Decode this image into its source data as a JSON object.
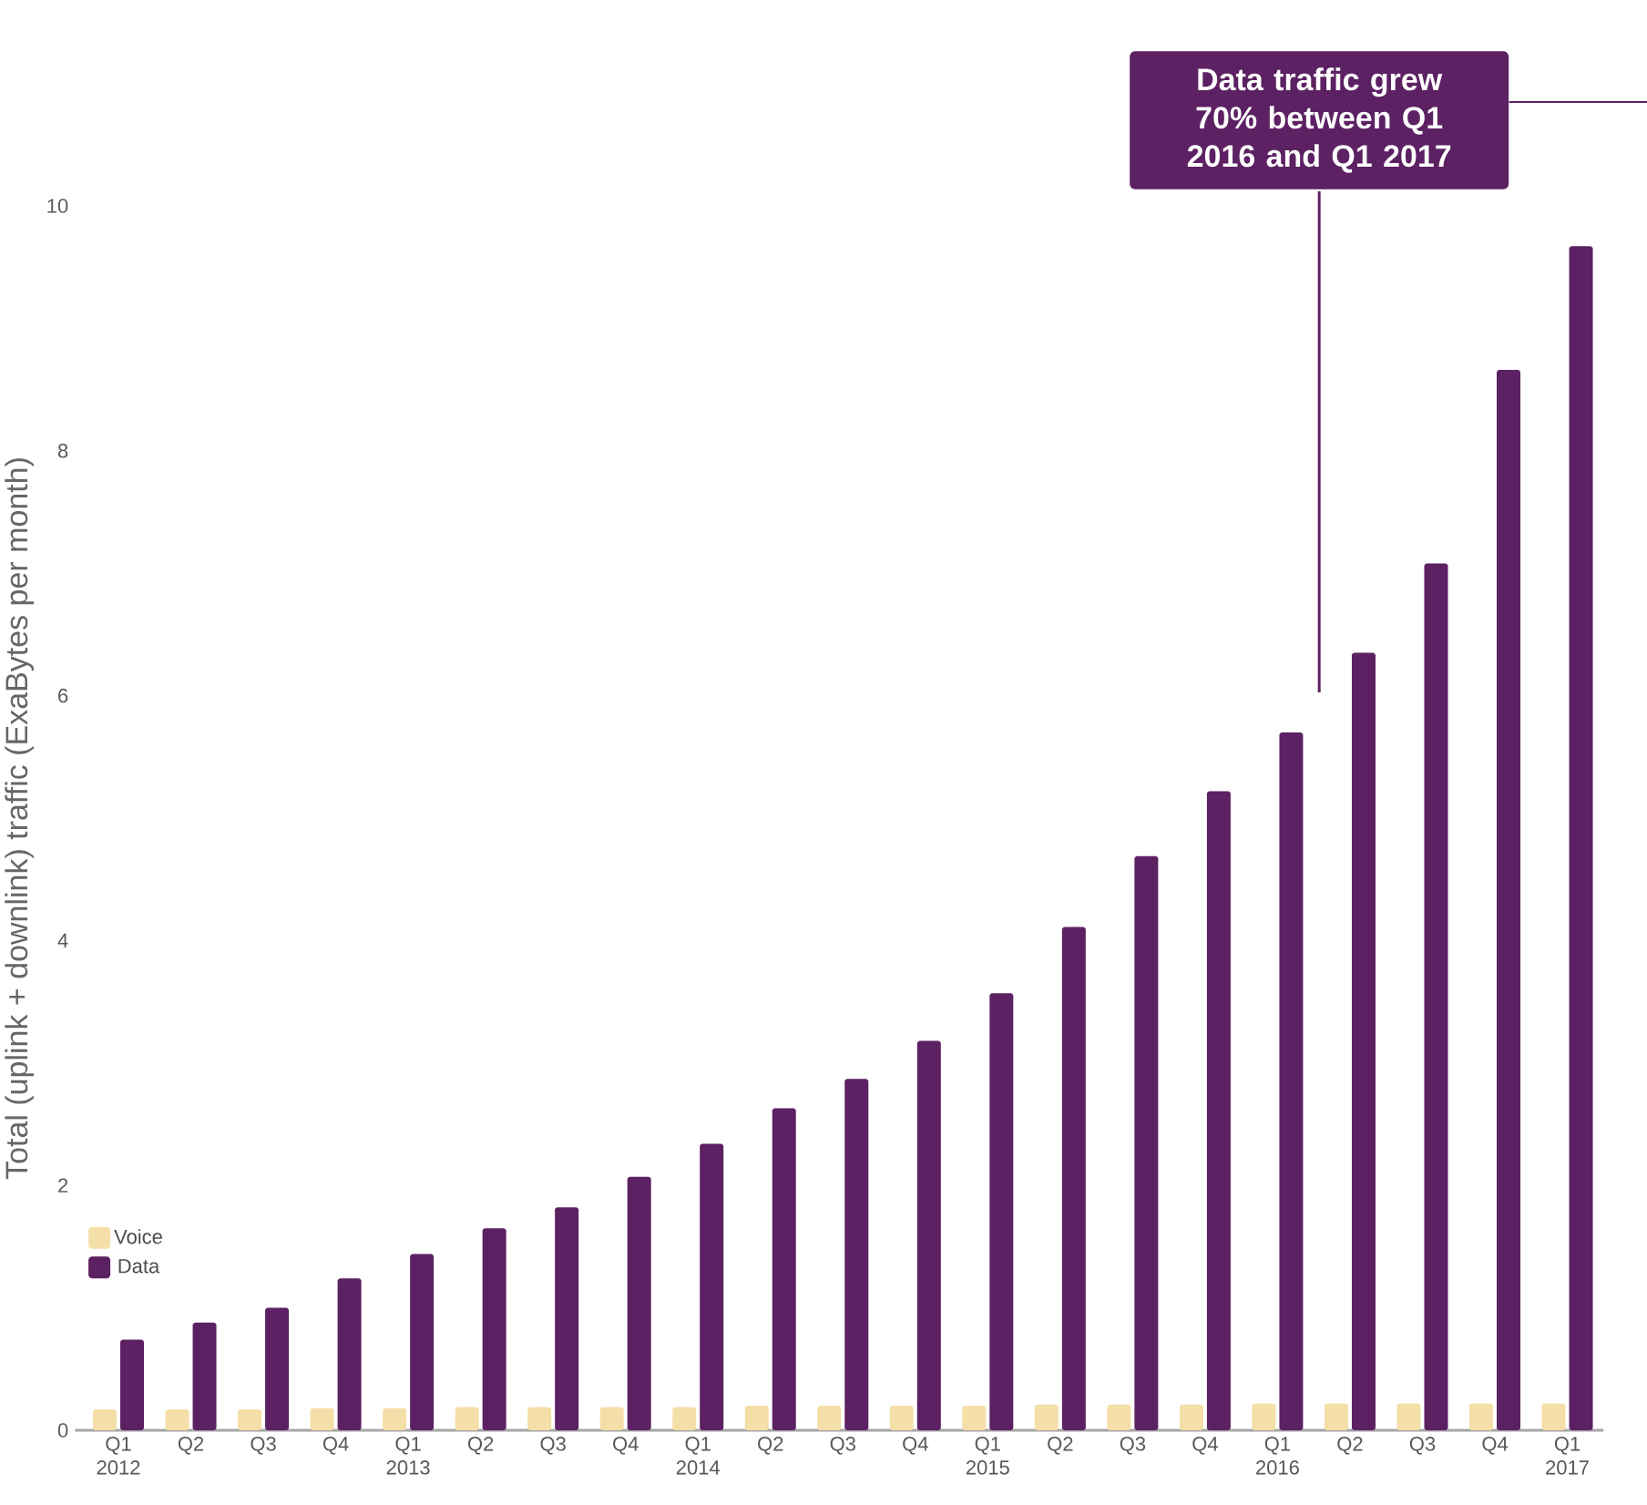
{
  "chart_data": {
    "type": "bar",
    "ylabel": "Total (uplink + downlink) traffic (ExaBytes per month)",
    "categories": [
      "Q1 2012",
      "Q2",
      "Q3",
      "Q4",
      "Q1 2013",
      "Q2",
      "Q3",
      "Q4",
      "Q1 2014",
      "Q2",
      "Q3",
      "Q4",
      "Q1 2015",
      "Q2",
      "Q3",
      "Q4",
      "Q1 2016",
      "Q2",
      "Q3",
      "Q4",
      "Q1 2017"
    ],
    "series": [
      {
        "name": "Voice",
        "color": "#f5dfa8",
        "values": [
          0.17,
          0.17,
          0.17,
          0.18,
          0.18,
          0.19,
          0.19,
          0.19,
          0.19,
          0.2,
          0.2,
          0.2,
          0.2,
          0.21,
          0.21,
          0.21,
          0.22,
          0.22,
          0.22,
          0.22,
          0.22
        ]
      },
      {
        "name": "Data",
        "color": "#5c2163",
        "values": [
          0.74,
          0.88,
          1.0,
          1.24,
          1.44,
          1.65,
          1.82,
          2.07,
          2.34,
          2.63,
          2.87,
          3.18,
          3.57,
          4.11,
          4.69,
          5.22,
          5.7,
          6.35,
          7.08,
          8.66,
          9.67
        ]
      }
    ],
    "ylim": [
      0,
      10
    ],
    "yticks": [
      0,
      2,
      4,
      6,
      8,
      10
    ],
    "grid": false,
    "legend": "bottom left",
    "annotations": [
      "Data traffic grew 70% between Q1 2016 and Q1 2017"
    ]
  }
}
